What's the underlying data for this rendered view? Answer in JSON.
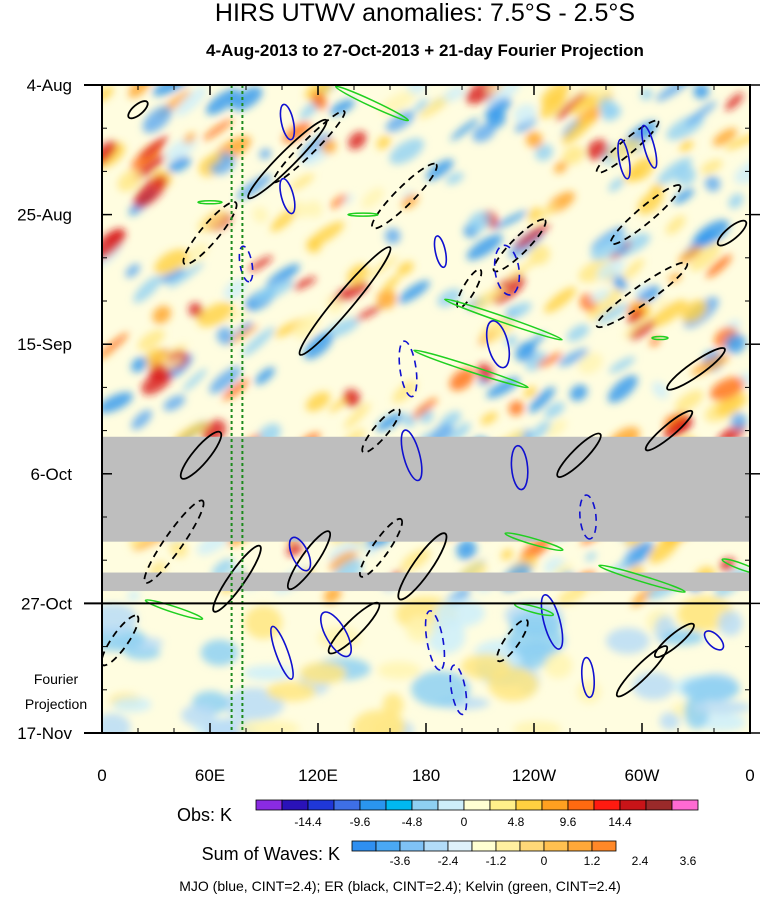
{
  "chart_data": {
    "type": "heatmap",
    "title": "HIRS UTWV anomalies: 7.5°S - 2.5°S",
    "subtitle": "4-Aug-2013 to 27-Oct-2013 + 21-day Fourier Projection",
    "x_tick_labels": [
      "0",
      "60E",
      "120E",
      "180",
      "120W",
      "60W",
      "0"
    ],
    "x_tick_lons": [
      0,
      60,
      120,
      180,
      240,
      300,
      360
    ],
    "xlim": [
      0,
      360
    ],
    "y_tick_labels": [
      "4-Aug",
      "25-Aug",
      "15-Sep",
      "6-Oct",
      "27-Oct",
      "17-Nov"
    ],
    "y_tick_days": [
      0,
      21,
      42,
      63,
      84,
      105
    ],
    "ylim_days": [
      0,
      105
    ],
    "projection_start_day": 84,
    "projection_label": [
      "Fourier",
      "Projection"
    ],
    "reference_lons": [
      72,
      78
    ],
    "missing_data_bands": [
      [
        57,
        74
      ],
      [
        79,
        82
      ]
    ],
    "obs_colorbar": {
      "label": "Obs: K",
      "tick_labels": [
        "-14.4",
        "-9.6",
        "-4.8",
        "0",
        "4.8",
        "9.6",
        "14.4"
      ],
      "colors": [
        "#8a2be2",
        "#2a12b8",
        "#1f37d8",
        "#3e6fe6",
        "#2a95ee",
        "#00b8f0",
        "#8ed0f2",
        "#cdeefa",
        "#ffffd2",
        "#fff08a",
        "#ffd040",
        "#ffa020",
        "#ff6a10",
        "#ff1a10",
        "#c81418",
        "#9a2a2a",
        "#ff6ad2"
      ]
    },
    "waves_colorbar": {
      "label": "Sum of Waves: K",
      "tick_labels": [
        "-3.6",
        "-2.4",
        "-1.2",
        "0",
        "1.2",
        "2.4",
        "3.6"
      ],
      "colors": [
        "#2f8ff0",
        "#4aa8f4",
        "#7fc2f6",
        "#b2dcf8",
        "#dff2fb",
        "#ffffd2",
        "#fff0a0",
        "#ffd878",
        "#ffc050",
        "#ffa838",
        "#ff8828"
      ]
    },
    "footer": "MJO (blue, CINT=2.4); ER (black, CINT=2.4); Kelvin (green, CINT=2.4)",
    "series": [
      {
        "name": "MJO",
        "color": "#1010d0",
        "contour_interval": 2.4
      },
      {
        "name": "ER",
        "color": "#000000",
        "contour_interval": 2.4
      },
      {
        "name": "Kelvin",
        "color": "#20d020",
        "contour_interval": 2.4
      }
    ]
  },
  "colors": {
    "missing": "#bebebe",
    "frame": "#000000",
    "ref_line": "#1c8a1c"
  }
}
